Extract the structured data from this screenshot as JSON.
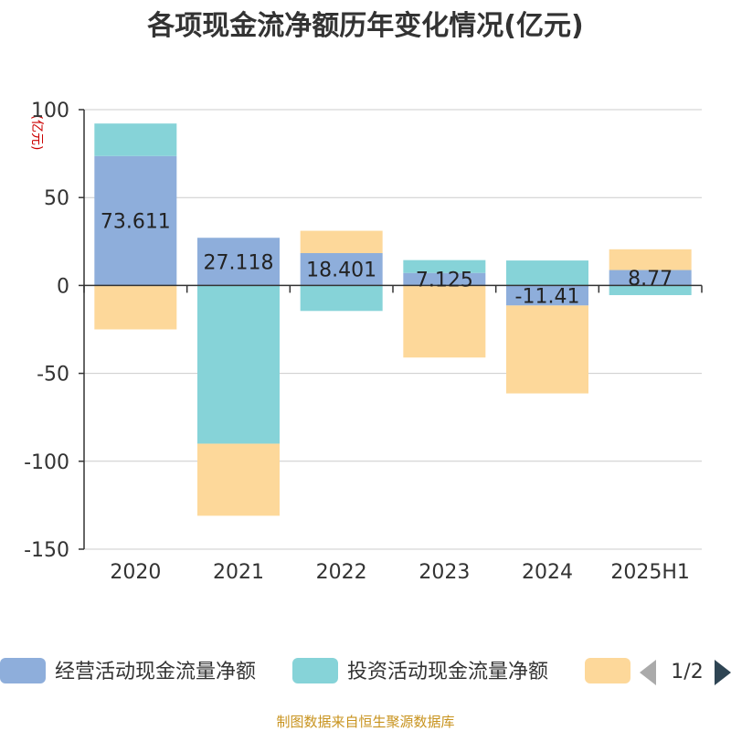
{
  "chart_data": {
    "type": "bar",
    "stacked": true,
    "title": "各项现金流净额历年变化情况(亿元)",
    "ylabel": "(亿元)",
    "categories": [
      "2020",
      "2021",
      "2022",
      "2023",
      "2024",
      "2025H1"
    ],
    "ylim": [
      -150,
      100
    ],
    "yticks": [
      100,
      50,
      0,
      -50,
      -100,
      -150
    ],
    "grid": true,
    "series": [
      {
        "name": "经营活动现金流量净额",
        "color": "#8eaedb",
        "values": [
          73.611,
          27.118,
          18.401,
          7.125,
          -11.41,
          8.77
        ]
      },
      {
        "name": "投资活动现金流量净额",
        "color": "#86d3d8",
        "values": [
          18.5,
          -90.0,
          -14.5,
          7.3,
          14.2,
          -5.5
        ]
      },
      {
        "name": "",
        "color": "#fdd89a",
        "values": [
          -25.0,
          -41.0,
          12.7,
          -41.0,
          -50.0,
          11.8
        ]
      }
    ],
    "data_labels": [
      "73.611",
      "27.118",
      "18.401",
      "7.125",
      "-11.41",
      "8.77"
    ],
    "legend": {
      "position": "bottom",
      "page": "1/2"
    }
  },
  "footer": "制图数据来自恒生聚源数据库"
}
